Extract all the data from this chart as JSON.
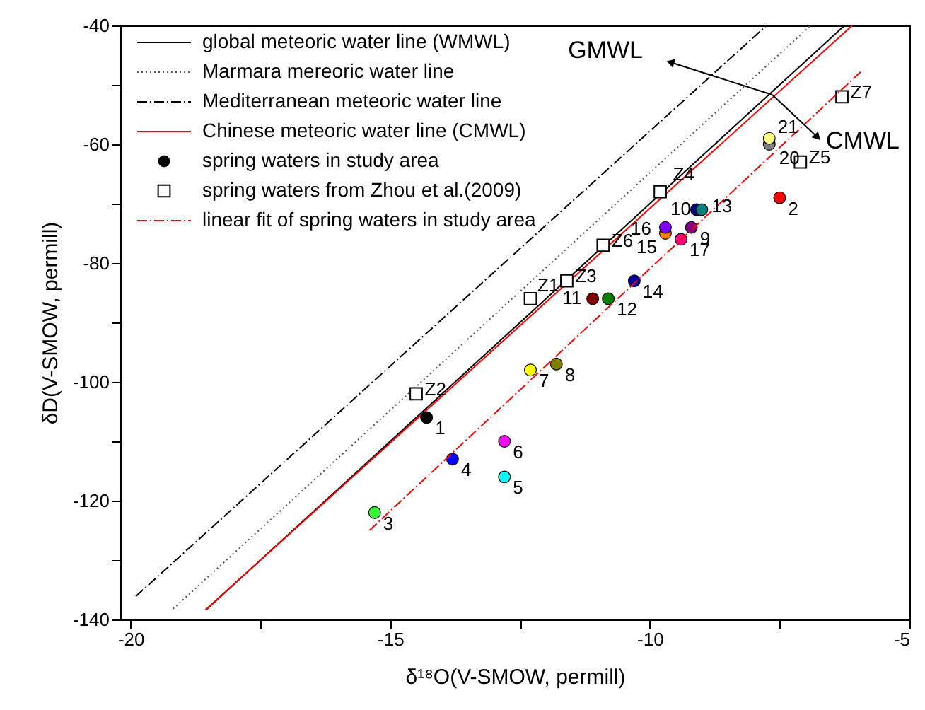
{
  "chart_data": {
    "type": "scatter",
    "xlabel": "δ¹⁸O(V-SMOW, permill)",
    "ylabel": "δD(V-SMOW, permill)",
    "xlim": [
      -20.2,
      -5
    ],
    "ylim": [
      -140,
      -40
    ],
    "xticks": [
      -20,
      {
        "value": -17.5,
        "label": null
      },
      -15,
      {
        "value": -12.5,
        "label": null
      },
      -10,
      {
        "value": -7.5,
        "label": null
      },
      -5
    ],
    "yticks": [
      -140,
      {
        "value": -130,
        "label": null
      },
      -120,
      {
        "value": -110,
        "label": null
      },
      -100,
      {
        "value": -90,
        "label": null
      },
      -80,
      {
        "value": -70,
        "label": null
      },
      -60,
      {
        "value": -50,
        "label": null
      },
      -40
    ],
    "grid": false,
    "legend": "top left",
    "series": [
      {
        "name": "global meteoric water line (WMWL)",
        "type": "line",
        "line_style": "solid",
        "color": "#000000",
        "x": [
          -18.55,
          -6.25
        ],
        "values": [
          -138.4,
          -40
        ]
      },
      {
        "name": "Marmara mereoric water line",
        "type": "line",
        "line_style": "dotted",
        "color": "#555555",
        "x": [
          -19.18,
          -6.9
        ],
        "values": [
          -138.2,
          -40
        ]
      },
      {
        "name": "Mediterranean meteoric water line",
        "type": "line",
        "line_style": "dashed",
        "color": "#000000",
        "x": [
          -19.9,
          -7.75
        ],
        "values": [
          -136.1,
          -40
        ]
      },
      {
        "name": "Chinese meteoric water line (CMWL)",
        "type": "line",
        "line_style": "solid",
        "color": "#ff0000",
        "x": [
          -18.56,
          -6.1
        ],
        "values": [
          -138.4,
          -40
        ]
      },
      {
        "name": "spring waters in study area",
        "type": "scatter",
        "marker": "circle",
        "color": "#000000",
        "x": [
          -14.3,
          -7.5,
          -15.3,
          -13.8,
          -12.8,
          -12.8,
          -12.3,
          -11.8,
          -9.2,
          -9.1,
          -11.1,
          -10.8,
          -9.0,
          -10.3,
          -9.7,
          -9.7,
          -9.4,
          -7.7,
          -7.7
        ],
        "values": [
          -106,
          -69,
          -122,
          -113,
          -116,
          -110,
          -98,
          -97,
          -74,
          -71,
          -86,
          -86,
          -71,
          -83,
          -75,
          -74,
          -76,
          -60,
          -59
        ],
        "colors": [
          "#000000",
          "#ff0000",
          "#33ff33",
          "#0000ff",
          "#00ffff",
          "#ff00ff",
          "#ffff00",
          "#808000",
          "#800080",
          "#000080",
          "#800000",
          "#008000",
          "#008080",
          "#0000a0",
          "#ff8000",
          "#8000ff",
          "#ff0080",
          "#808080",
          "#ffff80"
        ]
      },
      {
        "name": "spring waters from Zhou et al.(2009)",
        "type": "scatter",
        "marker": "square",
        "color": "#000000",
        "x": [
          -12.3,
          -14.5,
          -11.6,
          -9.8,
          -7.1,
          -10.9,
          -6.3
        ],
        "values": [
          -86,
          -102,
          -83,
          -68,
          -63,
          -77,
          -52
        ]
      },
      {
        "name": "linear fit of  spring waters in study area",
        "type": "line",
        "line_style": "dashed",
        "color": "#ff0000",
        "x": [
          -15.4,
          -5.9
        ],
        "values": [
          -125,
          -47.5
        ]
      }
    ],
    "annotations": [
      {
        "text": "1",
        "x": -14.3,
        "y": -106
      },
      {
        "text": "2",
        "x": -7.5,
        "y": -69
      },
      {
        "text": "3",
        "x": -15.3,
        "y": -122
      },
      {
        "text": "4",
        "x": -13.8,
        "y": -113
      },
      {
        "text": "5",
        "x": -12.8,
        "y": -116
      },
      {
        "text": "6",
        "x": -12.8,
        "y": -110
      },
      {
        "text": "7",
        "x": -12.3,
        "y": -98
      },
      {
        "text": "8",
        "x": -11.8,
        "y": -97
      },
      {
        "text": "9",
        "x": -9.2,
        "y": -74
      },
      {
        "text": "10",
        "x": -9.1,
        "y": -71
      },
      {
        "text": "11",
        "x": -11.1,
        "y": -86
      },
      {
        "text": "12",
        "x": -10.8,
        "y": -86
      },
      {
        "text": "13",
        "x": -9.0,
        "y": -71
      },
      {
        "text": "14",
        "x": -10.3,
        "y": -83
      },
      {
        "text": "15",
        "x": -9.7,
        "y": -75
      },
      {
        "text": "16",
        "x": -9.7,
        "y": -74
      },
      {
        "text": "17",
        "x": -9.4,
        "y": -76
      },
      {
        "text": "20",
        "x": -7.7,
        "y": -60
      },
      {
        "text": "21",
        "x": -7.7,
        "y": -59
      },
      {
        "text": "Z1",
        "x": -12.3,
        "y": -86
      },
      {
        "text": "Z2",
        "x": -14.5,
        "y": -102
      },
      {
        "text": "Z3",
        "x": -11.6,
        "y": -83
      },
      {
        "text": "Z4",
        "x": -9.8,
        "y": -68
      },
      {
        "text": "Z5",
        "x": -7.1,
        "y": -63
      },
      {
        "text": "Z6",
        "x": -10.9,
        "y": -77
      },
      {
        "text": "Z7",
        "x": -6.3,
        "y": -52
      },
      "GMWL",
      "CMWL"
    ]
  }
}
